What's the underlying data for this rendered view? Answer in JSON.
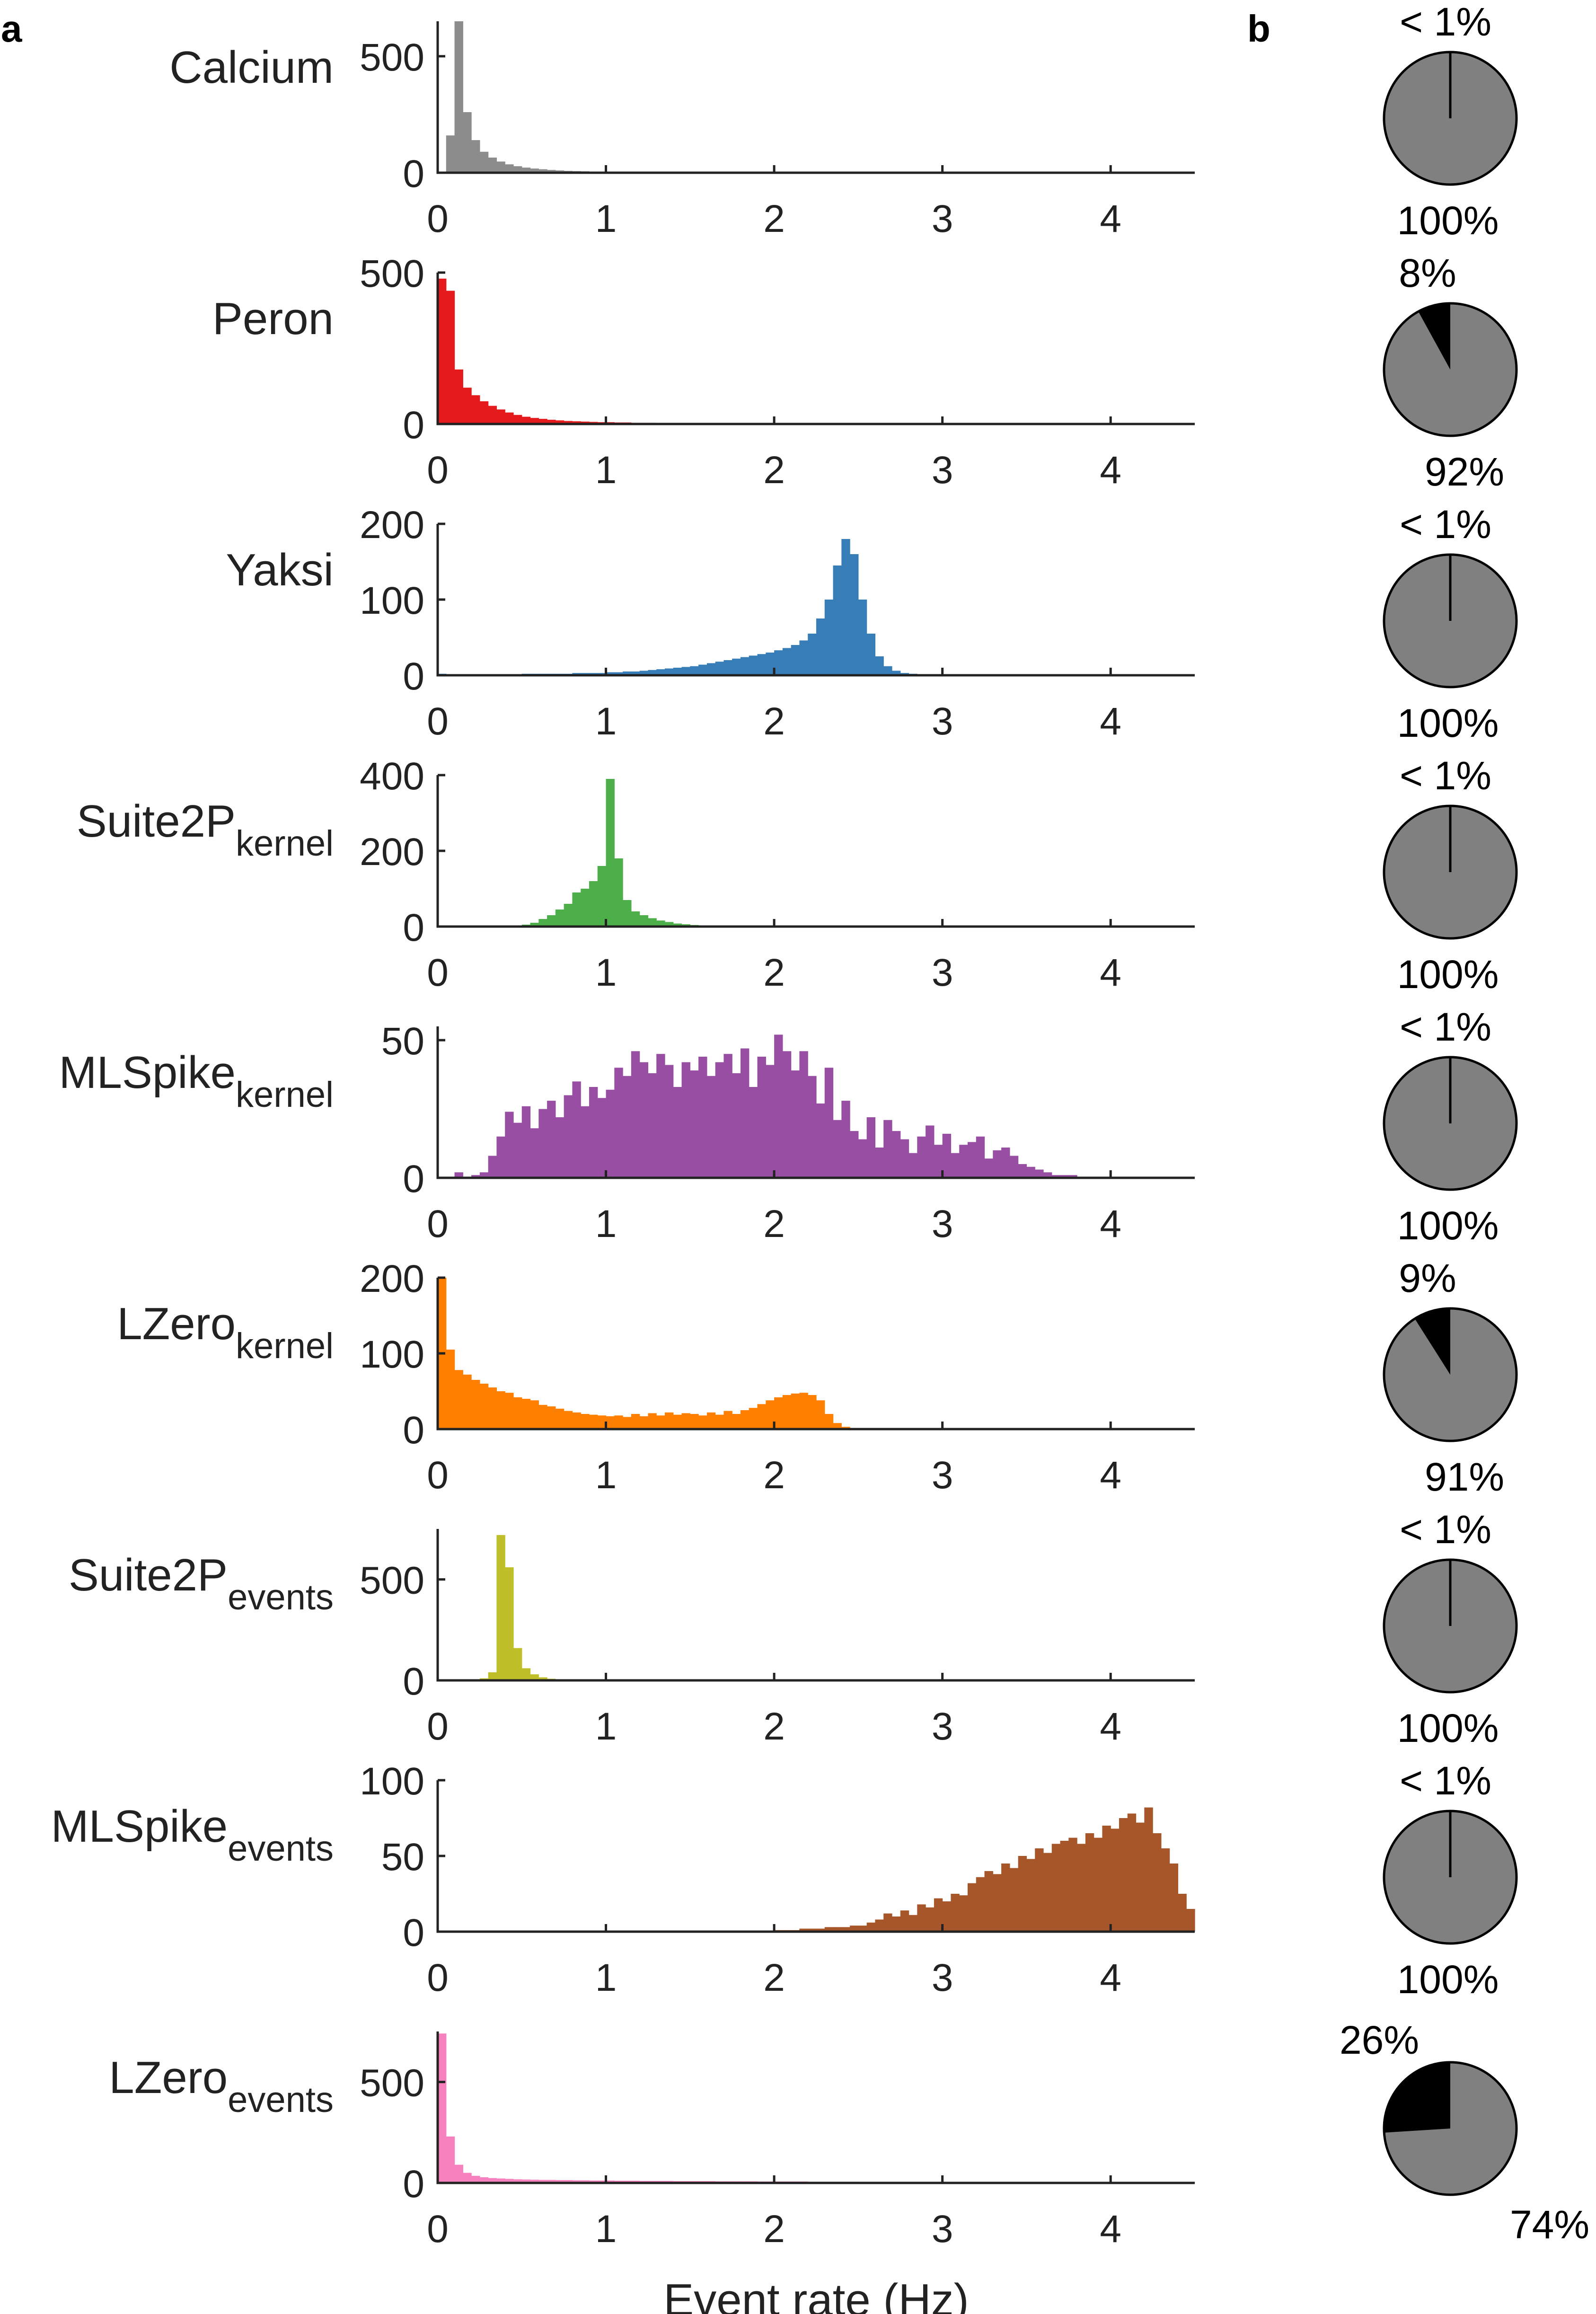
{
  "panel_labels": {
    "a": "a",
    "b": "b"
  },
  "chart_data": [
    {
      "type": "bar",
      "panel": "a",
      "name": "Calcium",
      "ylabel_main": "Calcium",
      "ylabel_sub": "",
      "color": "#8c8c8c",
      "ylim": [
        0,
        650
      ],
      "yticks": [
        0,
        500
      ],
      "xlim": [
        0,
        4.5
      ],
      "xticks": [
        0,
        1,
        2,
        3,
        4
      ],
      "bin_width": 0.05,
      "bin_start": 0,
      "values": [
        0,
        160,
        650,
        260,
        140,
        90,
        65,
        48,
        36,
        28,
        22,
        18,
        15,
        12,
        10,
        8,
        7,
        6,
        5,
        5,
        4,
        4,
        3,
        3,
        3,
        2,
        2,
        2,
        2,
        2,
        2,
        1,
        1,
        1,
        1,
        1,
        1,
        1,
        1,
        1,
        1,
        1,
        1,
        1,
        1,
        1,
        1,
        1,
        1,
        1
      ]
    },
    {
      "type": "bar",
      "panel": "a",
      "name": "Peron",
      "ylabel_main": "Peron",
      "ylabel_sub": "",
      "color": "#e41a1c",
      "ylim": [
        0,
        500
      ],
      "yticks": [
        0,
        500
      ],
      "xlim": [
        0,
        4.5
      ],
      "xticks": [
        0,
        1,
        2,
        3,
        4
      ],
      "bin_width": 0.05,
      "bin_start": 0,
      "values": [
        480,
        440,
        180,
        120,
        95,
        75,
        60,
        48,
        38,
        30,
        24,
        20,
        17,
        14,
        12,
        10,
        9,
        8,
        7,
        6,
        6,
        5,
        5,
        4,
        4,
        4,
        3,
        3,
        3,
        3,
        3,
        3,
        2,
        2,
        2,
        2,
        2,
        2,
        2,
        2,
        2,
        2,
        2,
        2,
        2
      ]
    },
    {
      "type": "bar",
      "panel": "a",
      "name": "Yaksi",
      "ylabel_main": "Yaksi",
      "ylabel_sub": "",
      "color": "#377eb8",
      "ylim": [
        0,
        200
      ],
      "yticks": [
        0,
        100,
        200
      ],
      "xlim": [
        0,
        4.5
      ],
      "xticks": [
        0,
        1,
        2,
        3,
        4
      ],
      "bin_width": 0.05,
      "bin_start": 0,
      "values": [
        2,
        1,
        1,
        1,
        1,
        1,
        1,
        1,
        1,
        1,
        2,
        2,
        2,
        2,
        2,
        2,
        3,
        3,
        3,
        3,
        4,
        4,
        5,
        5,
        6,
        7,
        8,
        9,
        10,
        11,
        12,
        14,
        16,
        18,
        20,
        22,
        24,
        26,
        28,
        30,
        33,
        36,
        40,
        46,
        55,
        75,
        100,
        145,
        180,
        160,
        100,
        55,
        25,
        12,
        6,
        3,
        2,
        1,
        1,
        1
      ]
    },
    {
      "type": "bar",
      "panel": "a",
      "name": "Suite2P kernel",
      "ylabel_main": "Suite2P",
      "ylabel_sub": "kernel",
      "color": "#4daf4a",
      "ylim": [
        0,
        400
      ],
      "yticks": [
        0,
        200,
        400
      ],
      "xlim": [
        0,
        4.5
      ],
      "xticks": [
        0,
        1,
        2,
        3,
        4
      ],
      "bin_width": 0.05,
      "bin_start": 0.5,
      "values": [
        5,
        10,
        20,
        30,
        45,
        60,
        90,
        100,
        120,
        160,
        390,
        180,
        70,
        40,
        30,
        22,
        16,
        12,
        8,
        6,
        4,
        3,
        2,
        2,
        1,
        1
      ]
    },
    {
      "type": "bar",
      "panel": "a",
      "name": "MLSpike kernel",
      "ylabel_main": "MLSpike",
      "ylabel_sub": "kernel",
      "color": "#984ea3",
      "ylim": [
        0,
        55
      ],
      "yticks": [
        0,
        50
      ],
      "xlim": [
        0,
        4.5
      ],
      "xticks": [
        0,
        1,
        2,
        3,
        4
      ],
      "bin_width": 0.05,
      "bin_start": 0,
      "values": [
        0,
        0,
        2,
        0,
        1,
        2,
        8,
        15,
        24,
        20,
        26,
        18,
        25,
        28,
        22,
        30,
        35,
        26,
        33,
        29,
        32,
        40,
        37,
        46,
        42,
        38,
        45,
        41,
        33,
        42,
        39,
        44,
        37,
        42,
        45,
        38,
        47,
        33,
        44,
        41,
        52,
        46,
        39,
        46,
        37,
        27,
        40,
        21,
        28,
        17,
        14,
        22,
        11,
        21,
        17,
        14,
        9,
        15,
        19,
        12,
        16,
        9,
        12,
        13,
        15,
        7,
        10,
        11,
        8,
        5,
        4,
        3,
        2,
        1,
        1,
        1
      ]
    },
    {
      "type": "bar",
      "panel": "a",
      "name": "LZero kernel",
      "ylabel_main": "LZero",
      "ylabel_sub": "kernel",
      "color": "#ff7f00",
      "ylim": [
        0,
        200
      ],
      "yticks": [
        0,
        100,
        200
      ],
      "xlim": [
        0,
        4.5
      ],
      "xticks": [
        0,
        1,
        2,
        3,
        4
      ],
      "bin_width": 0.05,
      "bin_start": 0,
      "values": [
        200,
        105,
        78,
        72,
        65,
        60,
        55,
        50,
        48,
        42,
        40,
        38,
        32,
        30,
        27,
        24,
        22,
        20,
        19,
        18,
        17,
        18,
        16,
        20,
        17,
        21,
        18,
        22,
        19,
        21,
        20,
        18,
        22,
        19,
        24,
        20,
        25,
        28,
        33,
        38,
        42,
        45,
        47,
        48,
        45,
        38,
        20,
        8,
        3,
        1
      ]
    },
    {
      "type": "bar",
      "panel": "a",
      "name": "Suite2P events",
      "ylabel_main": "Suite2P",
      "ylabel_sub": "events",
      "color": "#bfbf2a",
      "ylim": [
        0,
        750
      ],
      "yticks": [
        0,
        500
      ],
      "xlim": [
        0,
        4.5
      ],
      "xticks": [
        0,
        1,
        2,
        3,
        4
      ],
      "bin_width": 0.05,
      "bin_start": 0.25,
      "values": [
        10,
        40,
        720,
        560,
        160,
        60,
        30,
        15,
        8,
        5,
        3,
        2,
        1,
        1
      ]
    },
    {
      "type": "bar",
      "panel": "a",
      "name": "MLSpike events",
      "ylabel_main": "MLSpike",
      "ylabel_sub": "events",
      "color": "#a65628",
      "ylim": [
        0,
        100
      ],
      "yticks": [
        0,
        50,
        100
      ],
      "xlim": [
        0,
        4.5
      ],
      "xticks": [
        0,
        1,
        2,
        3,
        4
      ],
      "bin_width": 0.05,
      "bin_start": 2.0,
      "values": [
        1,
        1,
        1,
        2,
        2,
        2,
        3,
        3,
        3,
        4,
        4,
        6,
        8,
        12,
        10,
        14,
        11,
        18,
        16,
        22,
        20,
        25,
        24,
        32,
        36,
        40,
        38,
        45,
        42,
        50,
        48,
        55,
        52,
        58,
        60,
        62,
        58,
        65,
        62,
        70,
        68,
        75,
        78,
        72,
        82,
        65,
        55,
        45,
        25,
        15,
        8,
        5,
        6,
        3,
        4
      ]
    },
    {
      "type": "bar",
      "panel": "a",
      "name": "LZero events",
      "ylabel_main": "LZero",
      "ylabel_sub": "events",
      "color": "#f781bf",
      "ylim": [
        0,
        750
      ],
      "yticks": [
        0,
        500
      ],
      "xlim": [
        0,
        4.5
      ],
      "xticks": [
        0,
        1,
        2,
        3,
        4
      ],
      "xlabel": "Event rate (Hz)",
      "bin_width": 0.05,
      "bin_start": 0,
      "values": [
        740,
        230,
        90,
        50,
        35,
        28,
        24,
        22,
        20,
        18,
        17,
        16,
        15,
        15,
        14,
        14,
        13,
        13,
        12,
        12,
        12,
        11,
        11,
        11,
        10,
        10,
        10,
        10,
        9,
        9,
        9,
        9,
        9,
        8,
        8,
        8,
        8,
        8,
        7,
        7,
        7,
        7,
        7,
        7,
        6,
        6,
        6,
        6,
        6,
        6,
        5,
        5,
        5,
        5,
        5,
        5,
        5,
        5,
        4,
        4,
        4,
        4,
        4,
        4,
        4,
        4,
        4,
        4,
        3,
        3,
        3,
        3,
        3,
        3,
        3,
        3,
        3,
        3,
        3,
        3,
        3,
        3,
        3,
        3,
        3,
        3,
        3,
        3,
        3,
        3
      ]
    },
    {
      "type": "pie",
      "panel": "b",
      "series_colors": [
        "#000000",
        "#808080"
      ],
      "pies": [
        {
          "values": [
            0.3,
            99.7
          ],
          "labels": [
            "< 1%",
            "100%"
          ]
        },
        {
          "values": [
            8,
            92
          ],
          "labels": [
            "8%",
            "92%"
          ]
        },
        {
          "values": [
            0.3,
            99.7
          ],
          "labels": [
            "< 1%",
            "100%"
          ]
        },
        {
          "values": [
            0.3,
            99.7
          ],
          "labels": [
            "< 1%",
            "100%"
          ]
        },
        {
          "values": [
            0.3,
            99.7
          ],
          "labels": [
            "< 1%",
            "100%"
          ]
        },
        {
          "values": [
            9,
            91
          ],
          "labels": [
            "9%",
            "91%"
          ]
        },
        {
          "values": [
            0.3,
            99.7
          ],
          "labels": [
            "< 1%",
            "100%"
          ]
        },
        {
          "values": [
            0.3,
            99.7
          ],
          "labels": [
            "< 1%",
            "100%"
          ]
        },
        {
          "values": [
            26,
            74
          ],
          "labels": [
            "26%",
            "74%"
          ]
        }
      ]
    }
  ]
}
